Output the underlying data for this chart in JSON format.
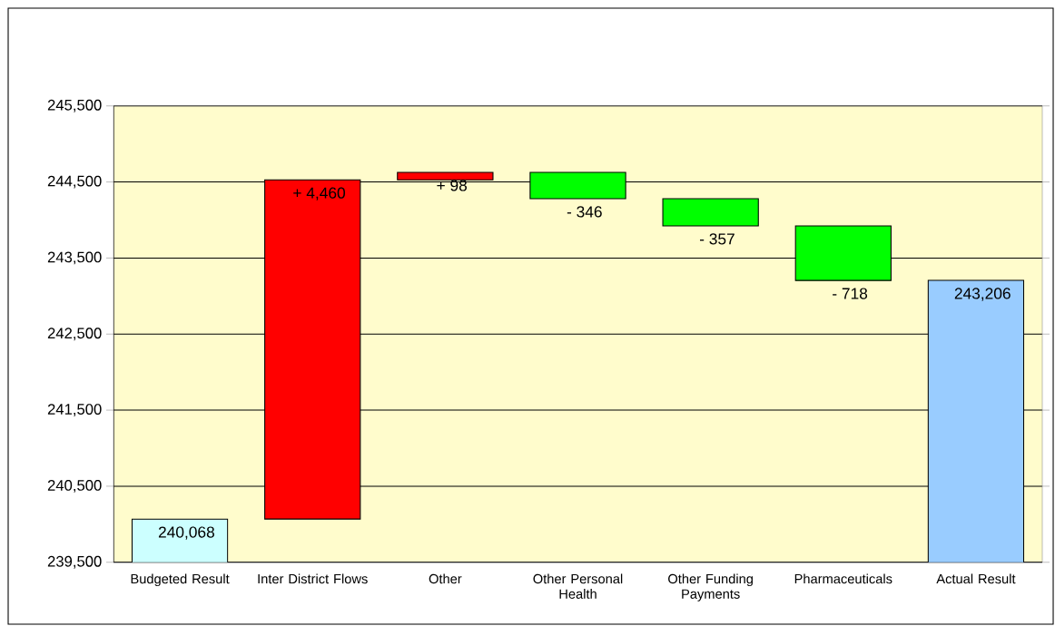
{
  "chart_data": {
    "type": "bar",
    "categories": [
      "Budgeted Result",
      "Inter District Flows",
      "Other",
      "Other Personal Health",
      "Other Funding Payments",
      "Pharmaceuticals",
      "Actual Result"
    ],
    "values": [
      240068,
      4460,
      98,
      -346,
      -357,
      -718,
      243206
    ],
    "base": [
      null,
      240068,
      244528,
      244626,
      244280,
      243923,
      null
    ],
    "value_labels": [
      "240,068",
      "+ 4,460",
      "+ 98",
      "- 346",
      "- 357",
      "- 718",
      "243,206"
    ],
    "colors": [
      "#ccffff",
      "#ff0000",
      "#ff0000",
      "#00ff00",
      "#00ff00",
      "#00ff00",
      "#99ccff"
    ],
    "ylim": [
      239500,
      245500
    ],
    "yticks": [
      {
        "value": 239500,
        "label": "239,500"
      },
      {
        "value": 240500,
        "label": "240,500"
      },
      {
        "value": 241500,
        "label": "241,500"
      },
      {
        "value": 242500,
        "label": "242,500"
      },
      {
        "value": 243500,
        "label": "243,500"
      },
      {
        "value": 244500,
        "label": "244,500"
      },
      {
        "value": 245500,
        "label": "245,500"
      }
    ],
    "grid": "y"
  }
}
